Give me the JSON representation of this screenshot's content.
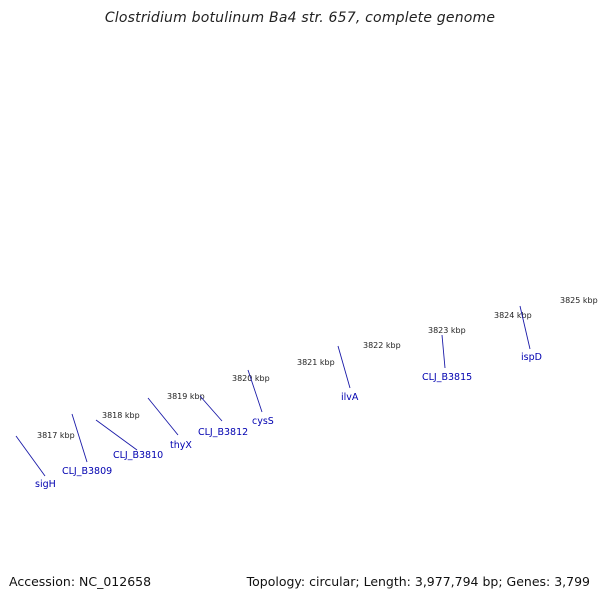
{
  "title": "Clostridium botulinum Ba4 str. 657, complete genome",
  "accession_text": "Accession: NC_012658",
  "summary_text": "Topology: circular; Length: 3,977,794 bp; Genes: 3,799",
  "colors": {
    "cds_forward": "#1010ee",
    "cds_reverse_red": "#f08a8a",
    "cds_reverse_gray": "#c8c8c8",
    "orange": "#ff8c00",
    "cyan": "#18b8f0",
    "dark_gray": "#6a6a6a",
    "steel_blue": "#4a82b4",
    "lavender": "#8070d8",
    "backbone": "#8a8a8a",
    "tick_green": "#1e7a1e",
    "label_blue": "#0000b0"
  },
  "ticks": [
    {
      "label": "3817 kbp"
    },
    {
      "label": "3818 kbp"
    },
    {
      "label": "3819 kbp"
    },
    {
      "label": "3820 kbp"
    },
    {
      "label": "3821 kbp"
    },
    {
      "label": "3822 kbp"
    },
    {
      "label": "3823 kbp"
    },
    {
      "label": "3824 kbp"
    },
    {
      "label": "3825 kbp"
    }
  ],
  "gene_labels": [
    {
      "name": "sigH"
    },
    {
      "name": "CLJ_B3809"
    },
    {
      "name": "CLJ_B3810"
    },
    {
      "name": "thyX"
    },
    {
      "name": "CLJ_B3812"
    },
    {
      "name": "cysS"
    },
    {
      "name": "ilvA"
    },
    {
      "name": "CLJ_B3815"
    },
    {
      "name": "ispD"
    }
  ]
}
